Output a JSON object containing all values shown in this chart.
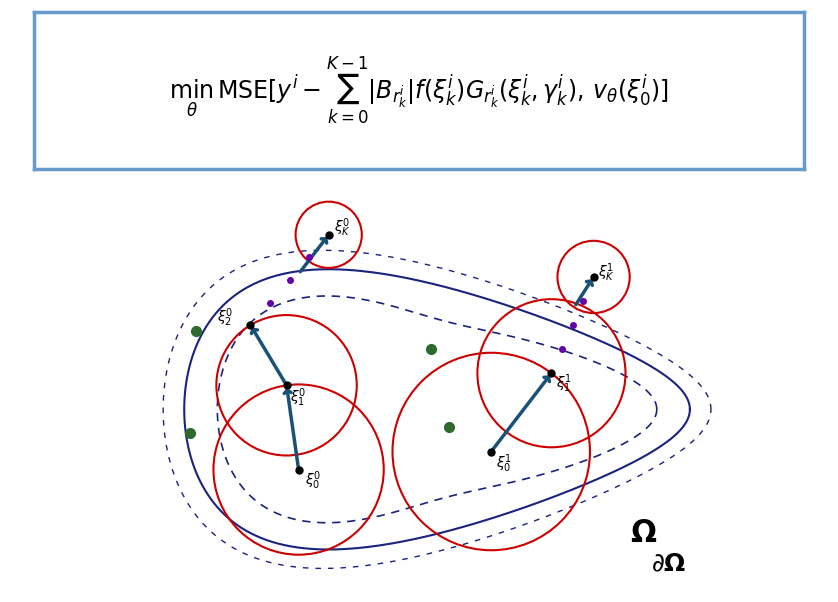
{
  "fig_width": 8.38,
  "fig_height": 6.02,
  "dpi": 100,
  "formula_box_color": "#6699cc",
  "formula_text": "$\\underset{\\theta}{\\min}\\,\\mathrm{MSE}[y^i - \\sum_{k=0}^{K-1}|B_{r_k^i}|f(\\xi_k^i)G_{r_k^i}(\\xi_k^i,\\gamma_k^i), v_{\\theta}(\\xi_0^i)]$",
  "domain_color": "#1a237e",
  "circle_color": "#cc0000",
  "arrow_color": "#1a5276",
  "dot_color": "#2d6a2d",
  "point_color": "#000000",
  "dotted_color": "#6600aa",
  "omega_label": "$\\mathbf{\\Omega}$",
  "partial_omega_label": "$\\partial\\mathbf{\\Omega}$"
}
